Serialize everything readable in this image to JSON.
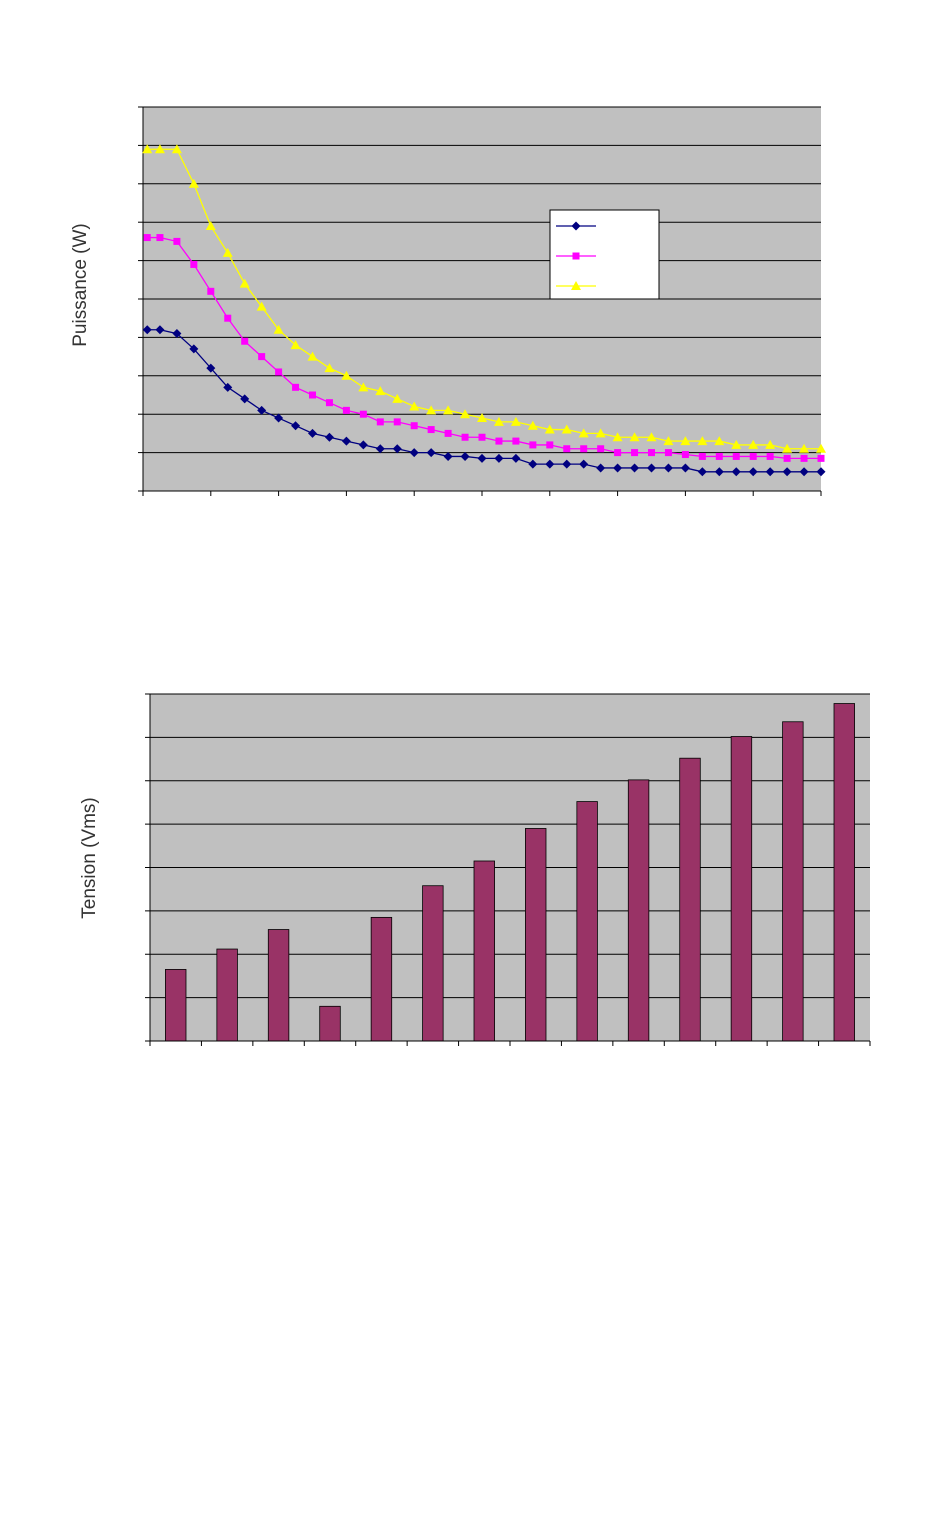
{
  "chart_data": [
    {
      "type": "line",
      "title": "",
      "xlabel": "",
      "ylabel": "Puissance (W)",
      "grid": true,
      "legend": "right",
      "plot_bg": "#c0c0c0",
      "ylim": [
        0,
        10
      ],
      "xlim": [
        0,
        40
      ],
      "x": [
        0.25,
        1,
        2,
        3,
        4,
        5,
        6,
        7,
        8,
        9,
        10,
        11,
        12,
        13,
        14,
        15,
        16,
        17,
        18,
        19,
        20,
        21,
        22,
        23,
        24,
        25,
        26,
        27,
        28,
        29,
        30,
        31,
        32,
        33,
        34,
        35,
        36,
        37,
        38,
        39,
        40
      ],
      "series": [
        {
          "color": "#000080",
          "marker": "diamond",
          "values": [
            4.2,
            4.2,
            4.1,
            3.7,
            3.2,
            2.7,
            2.4,
            2.1,
            1.9,
            1.7,
            1.5,
            1.4,
            1.3,
            1.2,
            1.1,
            1.1,
            1.0,
            1.0,
            0.9,
            0.9,
            0.85,
            0.85,
            0.85,
            0.7,
            0.7,
            0.7,
            0.7,
            0.6,
            0.6,
            0.6,
            0.6,
            0.6,
            0.6,
            0.5,
            0.5,
            0.5,
            0.5,
            0.5,
            0.5,
            0.5,
            0.5
          ]
        },
        {
          "color": "#ff00ff",
          "marker": "square",
          "values": [
            6.6,
            6.6,
            6.5,
            5.9,
            5.2,
            4.5,
            3.9,
            3.5,
            3.1,
            2.7,
            2.5,
            2.3,
            2.1,
            2.0,
            1.8,
            1.8,
            1.7,
            1.6,
            1.5,
            1.4,
            1.4,
            1.3,
            1.3,
            1.2,
            1.2,
            1.1,
            1.1,
            1.1,
            1.0,
            1.0,
            1.0,
            1.0,
            0.95,
            0.9,
            0.9,
            0.9,
            0.9,
            0.9,
            0.85,
            0.85,
            0.85
          ]
        },
        {
          "color": "#ffff00",
          "marker": "triangle",
          "values": [
            8.9,
            8.9,
            8.9,
            8.0,
            6.9,
            6.2,
            5.4,
            4.8,
            4.2,
            3.8,
            3.5,
            3.2,
            3.0,
            2.7,
            2.6,
            2.4,
            2.2,
            2.1,
            2.1,
            2.0,
            1.9,
            1.8,
            1.8,
            1.7,
            1.6,
            1.6,
            1.5,
            1.5,
            1.4,
            1.4,
            1.4,
            1.3,
            1.3,
            1.3,
            1.3,
            1.2,
            1.2,
            1.2,
            1.1,
            1.1,
            1.1
          ]
        }
      ]
    },
    {
      "type": "bar",
      "title": "",
      "xlabel": "",
      "ylabel": "Tension (Vms)",
      "grid": true,
      "plot_bg": "#c0c0c0",
      "bar_color": "#993366",
      "ylim": [
        0,
        8
      ],
      "values": [
        1.65,
        2.12,
        2.57,
        0.8,
        2.85,
        3.58,
        4.15,
        4.9,
        5.52,
        6.02,
        6.52,
        7.02,
        7.36,
        7.78
      ]
    }
  ]
}
